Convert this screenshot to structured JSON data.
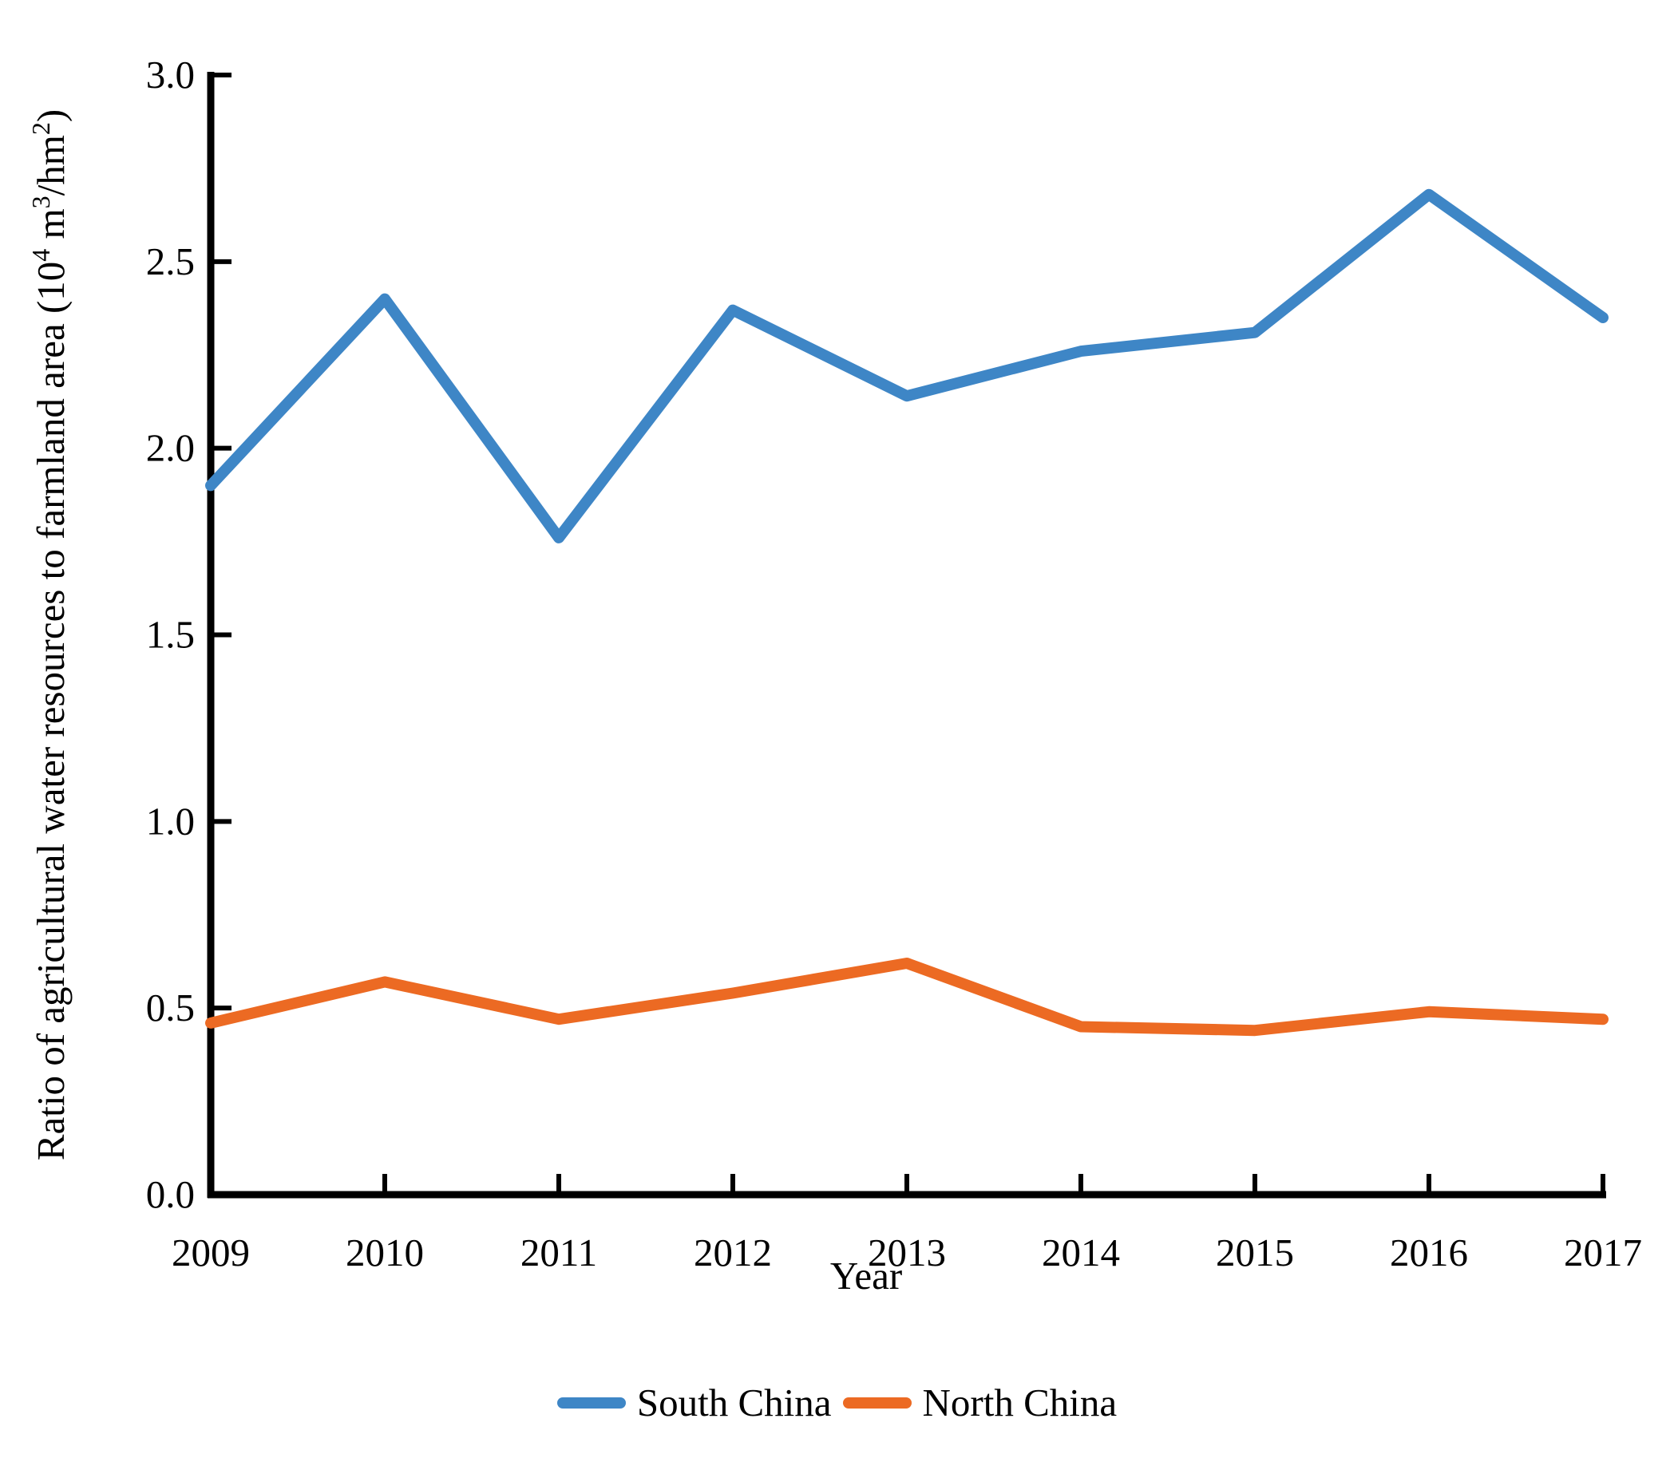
{
  "figure": {
    "background_color": "#ffffff",
    "text_color": "#000000",
    "axis_color": "#000000"
  },
  "chart_data": {
    "type": "line",
    "title": "",
    "xlabel": "Year",
    "ylabel": "Ratio of agricultural water resources to farmland area (10⁴ m³/hm²)",
    "ylabel_segments": [
      {
        "text": "Ratio of agricultural water resources to farmland area (10",
        "sup": false
      },
      {
        "text": "4",
        "sup": true
      },
      {
        "text": " m",
        "sup": false
      },
      {
        "text": "3",
        "sup": true
      },
      {
        "text": "/hm",
        "sup": false
      },
      {
        "text": "2",
        "sup": true
      },
      {
        "text": ")",
        "sup": false
      }
    ],
    "x": [
      2009,
      2010,
      2011,
      2012,
      2013,
      2014,
      2015,
      2016,
      2017
    ],
    "x_tick_labels": [
      "2009",
      "2010",
      "2011",
      "2012",
      "2013",
      "2014",
      "2015",
      "2016",
      "2017"
    ],
    "ylim": [
      0.0,
      3.0
    ],
    "ytick_values": [
      0.0,
      0.5,
      1.0,
      1.5,
      2.0,
      2.5,
      3.0
    ],
    "ytick_labels": [
      "0.0",
      "0.5",
      "1.0",
      "1.5",
      "2.0",
      "2.5",
      "3.0"
    ],
    "grid": false,
    "legend_position": "bottom-center",
    "series": [
      {
        "name": "South China",
        "color": "#3E86C6",
        "values": [
          1.9,
          2.4,
          1.76,
          2.37,
          2.14,
          2.26,
          2.31,
          2.68,
          2.35
        ]
      },
      {
        "name": "North China",
        "color": "#EC6A23",
        "values": [
          0.46,
          0.57,
          0.47,
          0.54,
          0.62,
          0.45,
          0.44,
          0.49,
          0.47
        ]
      }
    ]
  }
}
